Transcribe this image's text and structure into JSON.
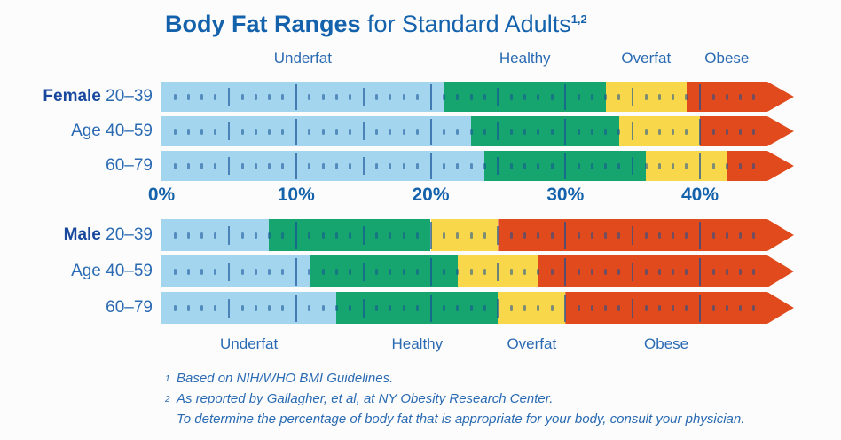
{
  "title": {
    "bold": "Body Fat Ranges",
    "rest": " for Standard Adults",
    "sup": "1,2"
  },
  "colors": {
    "underfat": "#a3d5ef",
    "healthy": "#17a56f",
    "overfat": "#f8d74b",
    "obese": "#e04a1d",
    "title_blue": "#1462ab",
    "label_blue": "#2a6ab2",
    "dark_blue": "#17489e"
  },
  "footnotes": [
    {
      "sup": "1",
      "text": "Based on NIH/WHO BMI Guidelines."
    },
    {
      "sup": "2",
      "text": "As reported by Gallagher, et al, at NY Obesity Research Center."
    },
    {
      "sup": "",
      "text": "To determine the percentage of body fat that is appropriate for your body, consult your physician."
    }
  ],
  "chart_data": {
    "type": "bar",
    "subtype": "stacked-range-arrow",
    "title": "Body Fat Ranges for Standard Adults",
    "unit": "percent body fat",
    "axis_range": [
      0,
      45
    ],
    "grid": false,
    "axis_ticks": [
      {
        "label": "0%",
        "value": 0
      },
      {
        "label": "10%",
        "value": 10
      },
      {
        "label": "20%",
        "value": 20
      },
      {
        "label": "30%",
        "value": 30
      },
      {
        "label": "40%",
        "value": 40
      }
    ],
    "categories": [
      "Underfat",
      "Healthy",
      "Overfat",
      "Obese"
    ],
    "category_labels_top": [
      "Underfat",
      "Healthy",
      "Overfat",
      "Obese"
    ],
    "category_labels_bottom": [
      "Underfat",
      "Healthy",
      "Overfat",
      "Obese"
    ],
    "groups": [
      {
        "sex": "Female",
        "rows": [
          {
            "prefix": "Female",
            "prefix_bold": true,
            "age": "20–39",
            "healthy_from": 21,
            "overfat_from": 33,
            "obese_from": 39
          },
          {
            "prefix": "Age",
            "prefix_bold": false,
            "age": "40–59",
            "healthy_from": 23,
            "overfat_from": 34,
            "obese_from": 40
          },
          {
            "prefix": "",
            "prefix_bold": false,
            "age": "60–79",
            "healthy_from": 24,
            "overfat_from": 36,
            "obese_from": 42
          }
        ]
      },
      {
        "sex": "Male",
        "rows": [
          {
            "prefix": "Male",
            "prefix_bold": true,
            "age": "20–39",
            "healthy_from": 8,
            "overfat_from": 20,
            "obese_from": 25
          },
          {
            "prefix": "Age",
            "prefix_bold": false,
            "age": "40–59",
            "healthy_from": 11,
            "overfat_from": 22,
            "obese_from": 28
          },
          {
            "prefix": "",
            "prefix_bold": false,
            "age": "60–79",
            "healthy_from": 13,
            "overfat_from": 25,
            "obese_from": 30
          }
        ]
      }
    ]
  }
}
